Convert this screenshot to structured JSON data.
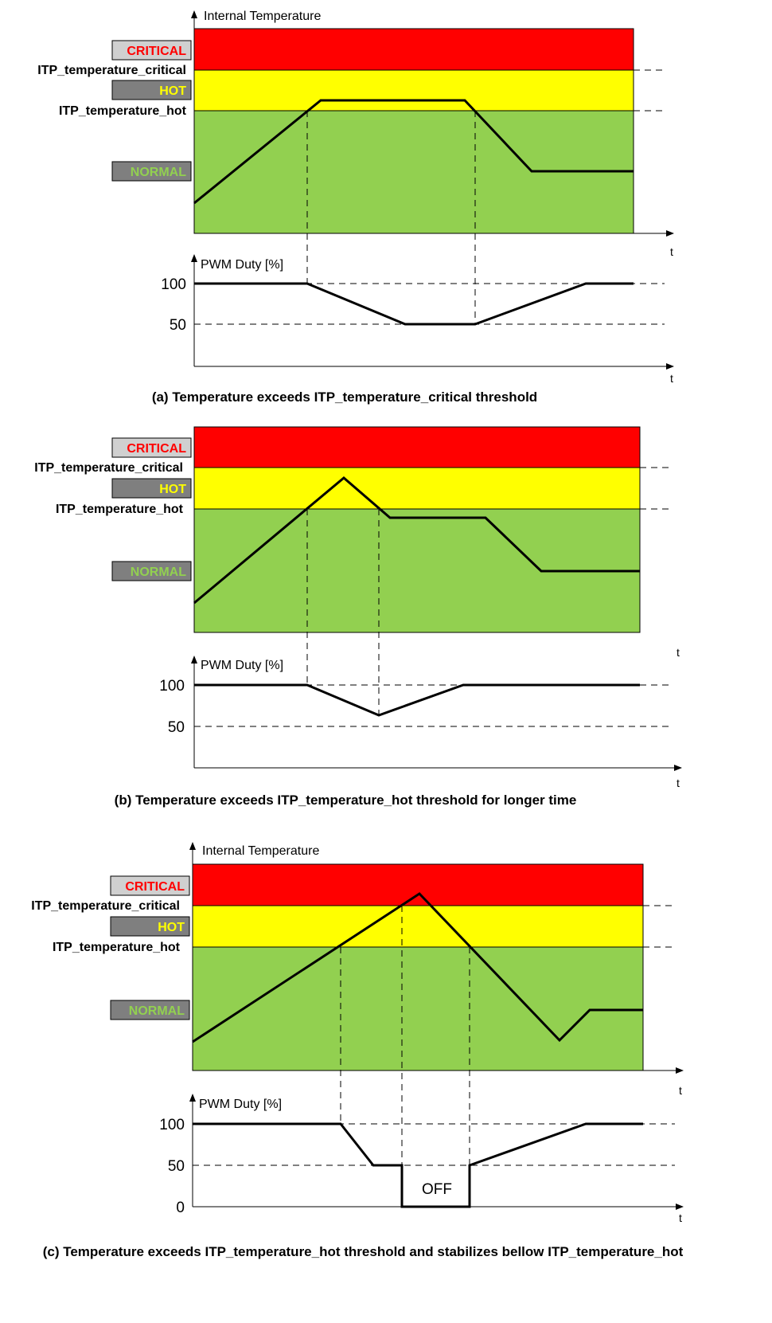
{
  "colors": {
    "critical": "#ff0000",
    "hot": "#ffff00",
    "normal": "#92d050",
    "tag_bg": "#7f7f7f",
    "critical_tag_bg": "#d0d0d0"
  },
  "labels": {
    "internal_temperature": "Internal Temperature",
    "pwm_duty": "PWM Duty [%]",
    "critical": "CRITICAL",
    "hot": "HOT",
    "normal": "NORMAL",
    "itp_critical": "ITP_temperature_critical",
    "itp_hot": "ITP_temperature_hot",
    "t": "t",
    "tick_100": "100",
    "tick_50": "50",
    "tick_0": "0",
    "off": "OFF"
  },
  "panels": [
    {
      "id": "a",
      "caption": "(a) Temperature exceeds ITP_temperature_critical threshold",
      "show_temp_title": true,
      "show_zero_tick": false,
      "temperature_line": [
        "start in NORMAL",
        "rise to HOT",
        "hold in HOT",
        "fall to NORMAL",
        "hold in NORMAL"
      ],
      "pwm_line": [
        100,
        100,
        50,
        50,
        100,
        100
      ]
    },
    {
      "id": "b",
      "caption": "(b) Temperature exceeds ITP_temperature_hot threshold for longer time",
      "show_temp_title": false,
      "show_zero_tick": false,
      "temperature_line": [
        "start in NORMAL",
        "rise to HOT peak",
        "fall to hot threshold",
        "hold",
        "fall to NORMAL",
        "hold in NORMAL"
      ],
      "pwm_line": [
        100,
        100,
        63,
        100,
        100
      ]
    },
    {
      "id": "c",
      "caption": "(c) Temperature exceeds ITP_temperature_hot threshold and stabilizes bellow ITP_temperature_hot",
      "show_temp_title": true,
      "show_zero_tick": true,
      "temperature_line": [
        "start in NORMAL",
        "rise to CRITICAL",
        "fall to NORMAL",
        "recover",
        "hold in NORMAL"
      ],
      "pwm_line": [
        100,
        100,
        50,
        50,
        0,
        0,
        50,
        100,
        100
      ]
    }
  ]
}
